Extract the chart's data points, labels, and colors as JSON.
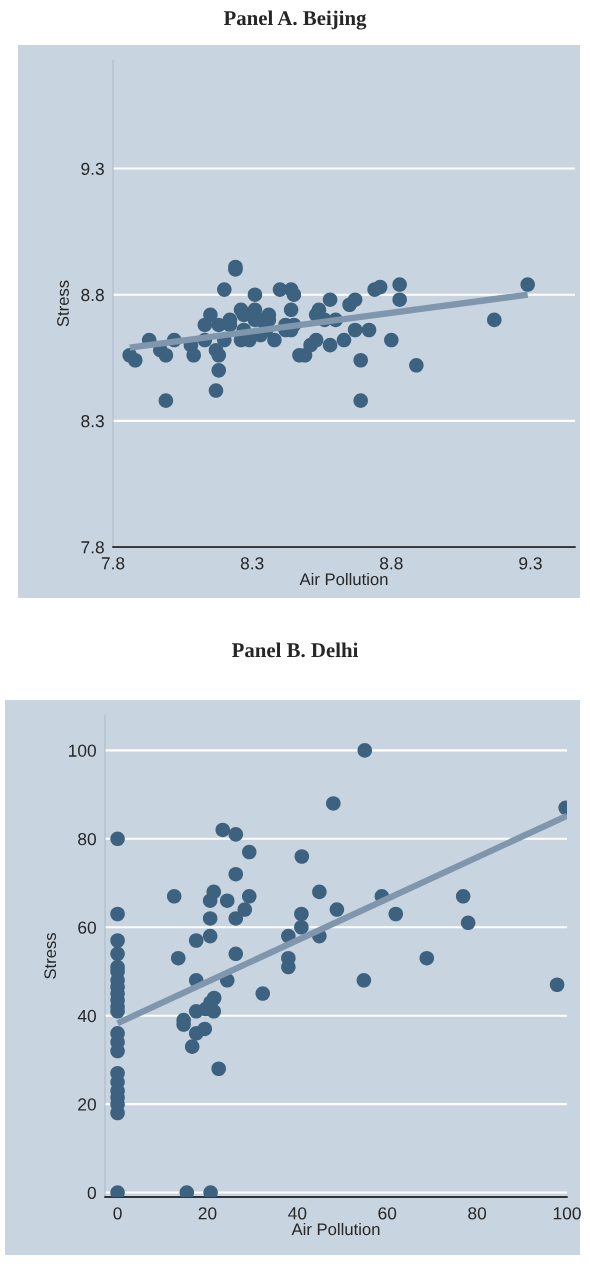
{
  "chart_data": [
    {
      "type": "scatter",
      "title": "Panel A. Beijing",
      "xlabel": "Air Pollution",
      "ylabel": "Stress",
      "xlim": [
        7.8,
        9.46
      ],
      "ylim": [
        7.8,
        9.73
      ],
      "xticks": [
        7.8,
        8.3,
        8.8,
        9.3
      ],
      "yticks": [
        7.8,
        8.3,
        8.8,
        9.3
      ],
      "grid": "y",
      "marker": "circle",
      "series": [
        {
          "color": "#3d6280",
          "x": [
            7.86,
            7.88,
            7.93,
            7.97,
            7.99,
            7.99,
            8.02,
            8.08,
            8.09,
            8.13,
            8.13,
            8.15,
            8.17,
            8.17,
            8.18,
            8.18,
            8.18,
            8.2,
            8.2,
            8.22,
            8.22,
            8.24,
            8.24,
            8.26,
            8.26,
            8.27,
            8.27,
            8.29,
            8.31,
            8.31,
            8.31,
            8.33,
            8.33,
            8.35,
            8.36,
            8.36,
            8.38,
            8.4,
            8.42,
            8.42,
            8.44,
            8.44,
            8.44,
            8.45,
            8.45,
            8.47,
            8.49,
            8.51,
            8.53,
            8.53,
            8.54,
            8.56,
            8.58,
            8.58,
            8.6,
            8.63,
            8.65,
            8.67,
            8.67,
            8.69,
            8.69,
            8.72,
            8.74,
            8.76,
            8.8,
            8.83,
            8.83,
            8.89,
            9.17,
            9.29
          ],
          "values": [
            8.56,
            8.54,
            8.62,
            8.58,
            8.56,
            8.38,
            8.62,
            8.6,
            8.56,
            8.62,
            8.68,
            8.72,
            8.58,
            8.42,
            8.5,
            8.68,
            8.56,
            8.82,
            8.62,
            8.68,
            8.7,
            8.9,
            8.91,
            8.74,
            8.62,
            8.72,
            8.66,
            8.62,
            8.7,
            8.8,
            8.74,
            8.7,
            8.64,
            8.66,
            8.72,
            8.7,
            8.62,
            8.82,
            8.68,
            8.66,
            8.82,
            8.74,
            8.66,
            8.8,
            8.68,
            8.56,
            8.56,
            8.6,
            8.62,
            8.72,
            8.74,
            8.7,
            8.6,
            8.78,
            8.7,
            8.62,
            8.76,
            8.66,
            8.78,
            8.54,
            8.38,
            8.66,
            8.82,
            8.83,
            8.62,
            8.84,
            8.78,
            8.52,
            8.7,
            8.84
          ]
        },
        {
          "type": "line",
          "marker": "none",
          "color": "#7f96ad",
          "x": [
            7.86,
            9.29
          ],
          "values": [
            8.59,
            8.8
          ]
        }
      ]
    },
    {
      "type": "scatter",
      "title": "Panel B. Delhi",
      "xlabel": "Air Pollution",
      "ylabel": "Stress",
      "xlim": [
        -2.8,
        100
      ],
      "ylim": [
        -1,
        108
      ],
      "xticks": [
        0,
        20,
        40,
        60,
        80,
        100
      ],
      "yticks": [
        0,
        20,
        40,
        60,
        80,
        100
      ],
      "grid": "y",
      "marker": "circle",
      "series": [
        {
          "color": "#3d6280",
          "x": [
            0,
            0,
            0,
            0,
            0,
            0,
            0,
            0,
            0,
            0,
            0,
            0,
            0,
            0,
            0,
            0,
            0,
            0,
            0,
            0,
            0,
            0,
            12.6,
            13.5,
            14.7,
            14.7,
            16.6,
            17.5,
            19.4,
            17.5,
            17.5,
            17.5,
            20.6,
            20.6,
            20.6,
            21.4,
            23.4,
            26.3,
            29.3,
            26.3,
            24.4,
            29.3,
            28.3,
            26.3,
            26.3,
            24.4,
            32.3,
            21.5,
            20.7,
            19.6,
            21.4,
            22.5,
            15.4,
            20.7,
            38,
            38,
            38,
            41,
            55,
            48,
            44.9,
            40.9,
            40.9,
            48.8,
            44.9,
            54.8,
            58.8,
            61.9,
            68.8,
            76.9,
            78,
            97.8,
            99.7
          ],
          "values": [
            80,
            63,
            57,
            54,
            51,
            50,
            48,
            46.5,
            45,
            43.5,
            42,
            41,
            36,
            34,
            32,
            27,
            25,
            23,
            21.5,
            20,
            18,
            0,
            67,
            53,
            39,
            38,
            33,
            36,
            37,
            41,
            48,
            57,
            58,
            62,
            66,
            68,
            82,
            81,
            77,
            72,
            66,
            67,
            64,
            62,
            54,
            48,
            45,
            44,
            43,
            41.5,
            41,
            28,
            0,
            0,
            58,
            53,
            51,
            76,
            100,
            88,
            68,
            63,
            60,
            64,
            58,
            48,
            67,
            63,
            53,
            67,
            61,
            47,
            87
          ]
        },
        {
          "type": "line",
          "marker": "none",
          "color": "#7f96ad",
          "x": [
            0,
            100
          ],
          "values": [
            38.3,
            85.2
          ]
        }
      ]
    }
  ]
}
